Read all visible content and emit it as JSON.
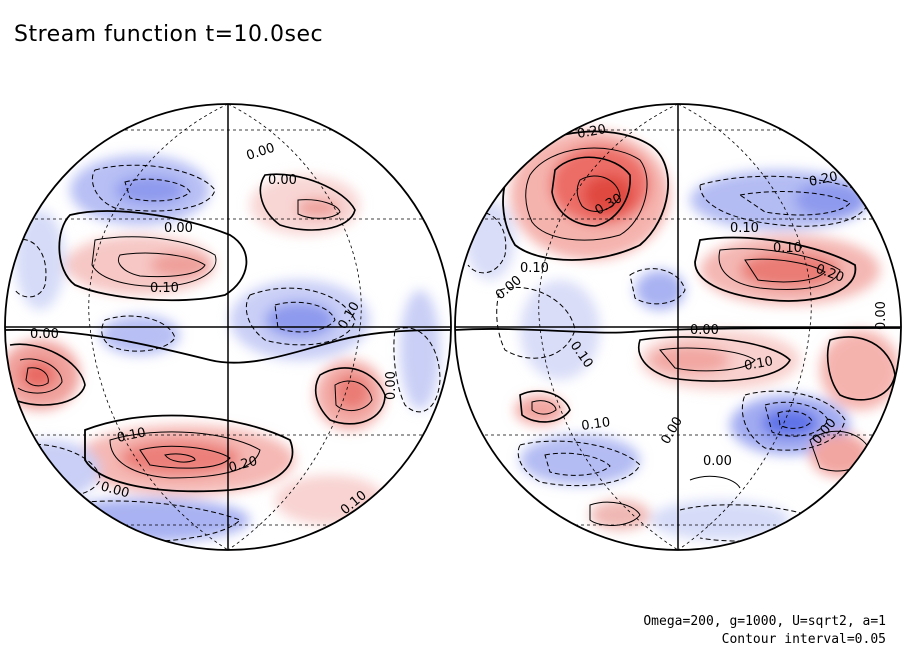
{
  "title": "Stream function t=10.0sec",
  "footer": {
    "params": "Omega=200, g=1000, U=sqrt2, a=1",
    "contour_interval": "Contour interval=0.05"
  },
  "colors": {
    "positive": "#e8473f",
    "negative": "#5a6ee6",
    "outline": "#000000"
  },
  "contour_labels": {
    "left": [
      "0.00",
      "0.00",
      "0.00",
      "0.10",
      "0.00",
      "0.10",
      "0.00",
      "0.10",
      "0.20",
      "0.00",
      "0.10"
    ],
    "right": [
      "0.20",
      "0.30",
      "0.20",
      "0.10",
      "0.10",
      "0.20",
      "0.00",
      "0.10",
      "0.00",
      "0.10",
      "0.10",
      "0.00",
      "0.10",
      "0.00",
      "0.00",
      "0.00"
    ]
  }
}
